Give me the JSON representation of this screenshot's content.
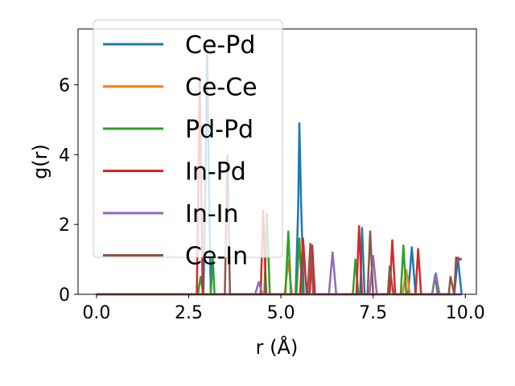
{
  "chart_data": {
    "type": "line",
    "title": "",
    "xlabel": "r (Å)",
    "ylabel": "g(r)",
    "xlim": [
      -0.5,
      10.3
    ],
    "ylim": [
      0,
      7.6
    ],
    "grid": false,
    "x_ticks": [
      0.0,
      2.5,
      5.0,
      7.5,
      10.0
    ],
    "x_tick_labels": [
      "0.0",
      "2.5",
      "5.0",
      "7.5",
      "10.0"
    ],
    "y_ticks": [
      0,
      2,
      4,
      6
    ],
    "y_tick_labels": [
      "0",
      "2",
      "4",
      "6"
    ],
    "legend_position": "top-left",
    "series": [
      {
        "name": "Ce-Pd",
        "color": "#1f77b4",
        "x": [
          0,
          2.9,
          2.95,
          3.0,
          3.05,
          3.1,
          5.4,
          5.47,
          5.5,
          5.55,
          5.62,
          7.15,
          7.2,
          7.27,
          8.45,
          8.55,
          8.65,
          9.7,
          9.8,
          9.85,
          9.9
        ],
        "y": [
          0,
          0,
          3.0,
          7.0,
          3.0,
          0,
          0,
          2.5,
          4.9,
          2.5,
          0,
          0,
          1.9,
          0,
          0,
          1.35,
          0,
          0,
          1.05,
          0.5,
          0
        ]
      },
      {
        "name": "Ce-Ce",
        "color": "#ff7f0e",
        "x": [
          0,
          5.1,
          5.2,
          5.3,
          8.3,
          8.4,
          8.5,
          9.9
        ],
        "y": [
          0,
          0,
          0.95,
          0,
          0,
          0.7,
          0,
          0
        ]
      },
      {
        "name": "Pd-Pd",
        "color": "#2ca02c",
        "x": [
          0,
          2.75,
          2.82,
          2.9,
          3.1,
          3.15,
          3.2,
          4.55,
          4.62,
          4.7,
          5.12,
          5.2,
          5.27,
          5.42,
          5.5,
          5.58,
          6.95,
          7.02,
          7.1,
          8.25,
          8.32,
          8.4,
          9.1,
          9.18,
          9.25,
          9.9
        ],
        "y": [
          0,
          0,
          0.5,
          0,
          0,
          1.1,
          0,
          0,
          2.3,
          0,
          0,
          1.8,
          0,
          0,
          1.6,
          0,
          0,
          1.0,
          0,
          0,
          1.4,
          0,
          0,
          0.55,
          0,
          0
        ]
      },
      {
        "name": "In-Pd",
        "color": "#d62728",
        "x": [
          0,
          2.72,
          2.8,
          2.88,
          4.45,
          4.52,
          4.6,
          5.52,
          5.6,
          5.7,
          5.78,
          5.85,
          5.92,
          7.05,
          7.12,
          7.2,
          7.95,
          8.02,
          8.1,
          8.65,
          8.72,
          8.8,
          9.7,
          9.75,
          9.9
        ],
        "y": [
          0,
          0,
          6.2,
          0,
          0,
          2.4,
          0,
          0,
          1.6,
          0,
          0,
          1.4,
          0,
          0,
          1.95,
          0,
          0,
          1.55,
          0,
          0,
          1.3,
          0,
          0,
          1.05,
          1.0
        ]
      },
      {
        "name": "In-In",
        "color": "#9467bd",
        "x": [
          0,
          4.3,
          4.4,
          4.5,
          6.3,
          6.4,
          6.5,
          7.4,
          7.5,
          7.6,
          9.1,
          9.2,
          9.3,
          9.9
        ],
        "y": [
          0,
          0,
          0.35,
          0,
          0,
          1.2,
          0,
          0,
          1.1,
          0,
          0,
          0.6,
          0,
          0
        ]
      },
      {
        "name": "Ce-In",
        "color": "#8c564b",
        "x": [
          0,
          3.48,
          3.55,
          3.62,
          5.72,
          5.8,
          5.88,
          7.35,
          7.42,
          7.5,
          7.9,
          7.95,
          8.05,
          9.55,
          9.6,
          9.7,
          9.75,
          9.9
        ],
        "y": [
          0,
          0,
          4.0,
          0,
          0,
          1.45,
          0,
          0,
          1.8,
          0,
          0,
          0.8,
          0,
          0,
          0.5,
          0,
          1.0,
          1.0
        ]
      }
    ]
  }
}
